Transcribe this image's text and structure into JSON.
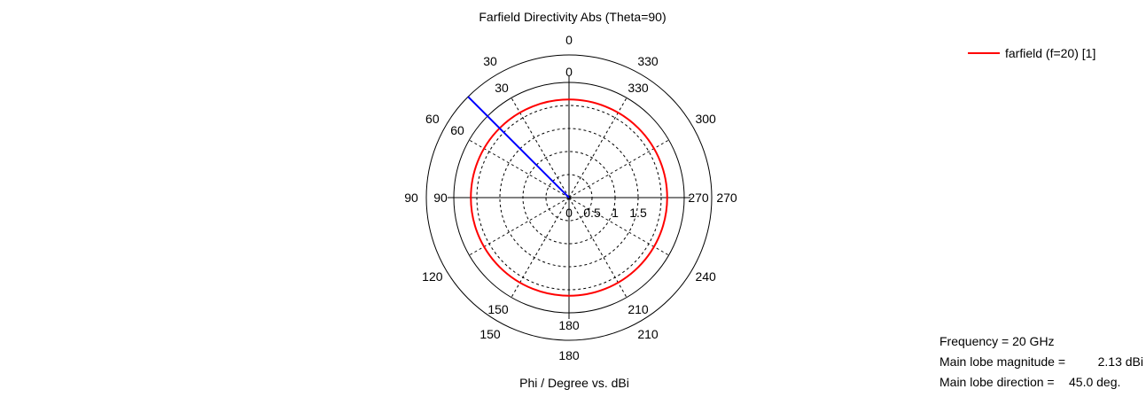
{
  "chart_data": {
    "type": "polar",
    "title": "Farfield Directivity Abs (Theta=90)",
    "xlabel": "Phi / Degree vs. dBi",
    "radial_ticks": [
      "0",
      "0.5",
      "1",
      "1.5"
    ],
    "radial_range": [
      0,
      2.5
    ],
    "outer_angle_labels": [
      "0",
      "30",
      "60",
      "90",
      "120",
      "150",
      "180",
      "210",
      "240",
      "270",
      "300",
      "330"
    ],
    "inner_angle_labels": [
      "0",
      "30",
      "60",
      "90",
      "150",
      "180",
      "210",
      "270",
      "330"
    ],
    "grid": true,
    "legend_position": "top-right",
    "series": [
      {
        "name": "farfield (f=20) [1]",
        "color": "#ff0000",
        "phi": [
          0,
          30,
          60,
          90,
          120,
          150,
          180,
          210,
          240,
          270,
          300,
          330,
          360
        ],
        "values": [
          2.13,
          2.13,
          2.13,
          2.13,
          2.13,
          2.13,
          2.13,
          2.13,
          2.13,
          2.13,
          2.13,
          2.13,
          2.13
        ]
      }
    ],
    "main_lobe": {
      "phi": 45,
      "color": "#0000ff"
    },
    "annotations": {
      "frequency_label": "Frequency = 20 GHz",
      "magnitude_label": "Main lobe magnitude =",
      "magnitude_value": "2.13 dBi",
      "direction_label": "Main lobe direction =",
      "direction_value": "45.0 deg."
    }
  }
}
